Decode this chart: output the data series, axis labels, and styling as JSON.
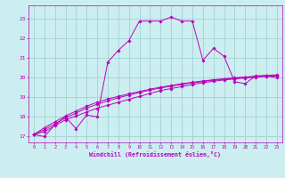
{
  "xlabel": "Windchill (Refroidissement éolien,°C)",
  "xlim": [
    -0.5,
    23.5
  ],
  "ylim": [
    16.7,
    23.7
  ],
  "yticks": [
    17,
    18,
    19,
    20,
    21,
    22,
    23
  ],
  "xticks": [
    0,
    1,
    2,
    3,
    4,
    5,
    6,
    7,
    8,
    9,
    10,
    11,
    12,
    13,
    14,
    15,
    16,
    17,
    18,
    19,
    20,
    21,
    22,
    23
  ],
  "bg_color": "#cceef0",
  "grid_color": "#99cccc",
  "line_color": "#bb00bb",
  "line1_x": [
    0,
    1,
    2,
    3,
    4,
    5,
    6,
    7,
    8,
    9,
    10,
    11,
    12,
    13,
    14,
    15,
    16,
    17,
    18,
    19,
    20,
    21,
    22,
    23
  ],
  "line1_y": [
    17.1,
    17.0,
    17.6,
    18.0,
    17.4,
    18.1,
    18.0,
    20.8,
    21.4,
    21.9,
    22.9,
    22.9,
    22.9,
    23.1,
    22.9,
    22.9,
    20.9,
    21.5,
    21.1,
    19.8,
    19.7,
    20.1,
    20.1,
    20.0
  ],
  "line2_x": [
    0,
    1,
    2,
    3,
    4,
    5,
    6,
    7,
    8,
    9,
    10,
    11,
    12,
    13,
    14,
    15,
    16,
    17,
    18,
    19,
    20,
    21,
    22,
    23
  ],
  "line2_y": [
    17.1,
    17.25,
    17.55,
    17.85,
    18.05,
    18.25,
    18.45,
    18.6,
    18.75,
    18.9,
    19.05,
    19.2,
    19.35,
    19.45,
    19.55,
    19.65,
    19.75,
    19.82,
    19.89,
    19.94,
    19.99,
    20.03,
    20.07,
    20.1
  ],
  "line3_x": [
    0,
    1,
    2,
    3,
    4,
    5,
    6,
    7,
    8,
    9,
    10,
    11,
    12,
    13,
    14,
    15,
    16,
    17,
    18,
    19,
    20,
    21,
    22,
    23
  ],
  "line3_y": [
    17.1,
    17.35,
    17.65,
    17.95,
    18.2,
    18.45,
    18.65,
    18.82,
    18.98,
    19.12,
    19.25,
    19.37,
    19.48,
    19.57,
    19.66,
    19.74,
    19.81,
    19.88,
    19.93,
    19.98,
    20.02,
    20.06,
    20.1,
    20.13
  ],
  "line4_x": [
    0,
    1,
    2,
    3,
    4,
    5,
    6,
    7,
    8,
    9,
    10,
    11,
    12,
    13,
    14,
    15,
    16,
    17,
    18,
    19,
    20,
    21,
    22,
    23
  ],
  "line4_y": [
    17.1,
    17.45,
    17.75,
    18.05,
    18.3,
    18.55,
    18.75,
    18.92,
    19.05,
    19.18,
    19.3,
    19.42,
    19.52,
    19.61,
    19.7,
    19.77,
    19.84,
    19.9,
    19.95,
    20.0,
    20.04,
    20.08,
    20.12,
    20.15
  ]
}
